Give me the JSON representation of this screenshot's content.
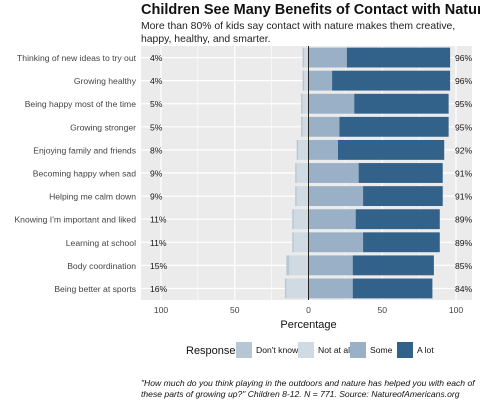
{
  "title": "Children See Many Benefits of Contact with Nature",
  "subtitle": "More than 80% of kids say contact with nature makes them creative, happy, healthy, and smarter.",
  "footnote": "\"How much do you think playing in the outdoors and nature has helped you with each of these parts of growing up?\" Children 8-12. N = 771. Source: NatureofAmericans.org",
  "colors": {
    "dont_know": "#b7c6d4",
    "not_at_all": "#d0dae3",
    "some": "#99b0c6",
    "a_lot": "#326189",
    "panel": "#ebebeb",
    "grid": "#ffffff",
    "zero_line": "#222222"
  },
  "chart_data": {
    "type": "bar",
    "orientation": "horizontal-diverging",
    "xlabel": "Percentage",
    "xlim": [
      -100,
      100
    ],
    "xticks": [
      -100,
      -50,
      0,
      50,
      100
    ],
    "xtick_labels": [
      "100",
      "50",
      "0",
      "50",
      "100"
    ],
    "grid": true,
    "legend_title": "Response",
    "legend_position": "bottom",
    "legend": [
      "Don't know",
      "Not at all",
      "Some",
      "A lot"
    ],
    "categories": [
      "Thinking of new ideas to try out",
      "Growing healthy",
      "Being happy most of the time",
      "Growing stronger",
      "Enjoying family and friends",
      "Becoming happy when sad",
      "Helping me calm down",
      "Knowing I'm important and liked",
      "Learning at school",
      "Body coordination",
      "Being better at sports"
    ],
    "left_labels": [
      "4%",
      "4%",
      "5%",
      "5%",
      "8%",
      "9%",
      "9%",
      "11%",
      "11%",
      "15%",
      "16%"
    ],
    "right_labels": [
      "96%",
      "96%",
      "95%",
      "95%",
      "92%",
      "91%",
      "91%",
      "89%",
      "89%",
      "85%",
      "84%"
    ],
    "series": [
      {
        "name": "Don't know",
        "side": "negative",
        "values": [
          1,
          1,
          1,
          1,
          1,
          1,
          1,
          1,
          1,
          2,
          1
        ]
      },
      {
        "name": "Not at all",
        "side": "negative",
        "values": [
          3,
          3,
          4,
          4,
          7,
          8,
          8,
          10,
          10,
          13,
          15
        ]
      },
      {
        "name": "Some",
        "side": "positive",
        "values": [
          26,
          16,
          31,
          21,
          20,
          34,
          37,
          32,
          37,
          30,
          30
        ]
      },
      {
        "name": "A lot",
        "side": "positive",
        "values": [
          70,
          80,
          64,
          74,
          72,
          57,
          54,
          57,
          52,
          55,
          54
        ]
      }
    ]
  }
}
